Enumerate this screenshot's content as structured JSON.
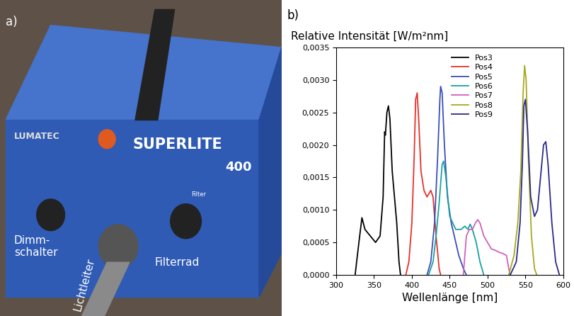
{
  "photo": {
    "label": "a)",
    "texts": {
      "brand": "LUMATEC",
      "model": "SUPERLITE",
      "model_number": "400",
      "filter_mark": "Filter",
      "dimmer": "Dimm-\nschalter",
      "light_guide": "Lichtleiter",
      "filter_wheel": "Filterrad"
    }
  },
  "chart_data": {
    "type": "line",
    "panel_label": "b)",
    "title": "Relative Intensität [W/m²nm]",
    "x_label": "Wellenlänge [nm]",
    "xlim": [
      300,
      600
    ],
    "xticks": [
      300,
      350,
      400,
      450,
      500,
      550,
      600
    ],
    "ylim": [
      0,
      0.0035
    ],
    "yticks": [
      {
        "value": 0,
        "label": "0,0000"
      },
      {
        "value": 0.0005,
        "label": "0,0005"
      },
      {
        "value": 0.001,
        "label": "0,0010"
      },
      {
        "value": 0.0015,
        "label": "0,0015"
      },
      {
        "value": 0.002,
        "label": "0,0020"
      },
      {
        "value": 0.0025,
        "label": "0,0025"
      },
      {
        "value": 0.003,
        "label": "0,0030"
      },
      {
        "value": 0.0035,
        "label": "0,0035"
      }
    ],
    "legend": "upper center",
    "series": [
      {
        "name": "Pos3",
        "color": "#000000",
        "x": [
          325,
          330,
          334,
          338,
          345,
          352,
          358,
          362,
          364,
          365,
          367,
          369,
          371,
          374,
          377,
          380,
          383,
          385
        ],
        "values": [
          0,
          0.0005,
          0.00088,
          0.0007,
          0.0006,
          0.0005,
          0.0006,
          0.0012,
          0.0022,
          0.00215,
          0.0025,
          0.0026,
          0.0024,
          0.0016,
          0.0012,
          0.0008,
          0.0002,
          0
        ]
      },
      {
        "name": "Pos4",
        "color": "#e8302a",
        "x": [
          392,
          396,
          400,
          403,
          405,
          407,
          409,
          412,
          416,
          420,
          425,
          428,
          432,
          436,
          438
        ],
        "values": [
          0,
          0.0002,
          0.0008,
          0.0018,
          0.0027,
          0.0028,
          0.0024,
          0.0016,
          0.0013,
          0.0012,
          0.0013,
          0.0012,
          0.0006,
          0.0001,
          0
        ]
      },
      {
        "name": "Pos5",
        "color": "#3a4fb5",
        "x": [
          420,
          425,
          430,
          434,
          437,
          438,
          440,
          443,
          447,
          452,
          458,
          462,
          468,
          472
        ],
        "values": [
          0,
          0.0002,
          0.0008,
          0.0018,
          0.0027,
          0.0029,
          0.0028,
          0.002,
          0.0012,
          0.0008,
          0.0005,
          0.0003,
          0.0001,
          0
        ]
      },
      {
        "name": "Pos6",
        "color": "#1aa0a0",
        "x": [
          422,
          428,
          432,
          436,
          440,
          442,
          445,
          450,
          458,
          465,
          470,
          474,
          477,
          480,
          485,
          490,
          495
        ],
        "values": [
          0,
          0.0002,
          0.0006,
          0.0011,
          0.0017,
          0.00175,
          0.0015,
          0.0009,
          0.0007,
          0.0007,
          0.00075,
          0.0007,
          0.00078,
          0.0007,
          0.0005,
          0.0002,
          0
        ]
      },
      {
        "name": "Pos7",
        "color": "#d060c0",
        "x": [
          468,
          472,
          476,
          480,
          484,
          487,
          490,
          495,
          500,
          505,
          510,
          515,
          520,
          525,
          528,
          530
        ],
        "values": [
          0,
          0.0006,
          0.0007,
          0.0007,
          0.0008,
          0.00085,
          0.0008,
          0.0006,
          0.0005,
          0.0004,
          0.00038,
          0.00035,
          0.00033,
          0.0003,
          0.0001,
          0
        ]
      },
      {
        "name": "Pos8",
        "color": "#a8a820",
        "x": [
          528,
          535,
          540,
          544,
          547,
          549,
          551,
          554,
          558,
          562,
          565
        ],
        "values": [
          0,
          0.0003,
          0.0008,
          0.0016,
          0.0028,
          0.00322,
          0.003,
          0.0018,
          0.0006,
          0.0001,
          0
        ]
      },
      {
        "name": "Pos9",
        "color": "#2a2a8a",
        "x": [
          530,
          538,
          543,
          546,
          548,
          550,
          553,
          557,
          562,
          566,
          570,
          574,
          577,
          580,
          585,
          590,
          595
        ],
        "values": [
          0,
          0.0002,
          0.0008,
          0.0017,
          0.0026,
          0.0027,
          0.0022,
          0.0012,
          0.0009,
          0.001,
          0.0015,
          0.002,
          0.00205,
          0.0017,
          0.0008,
          0.0002,
          0
        ]
      }
    ]
  }
}
